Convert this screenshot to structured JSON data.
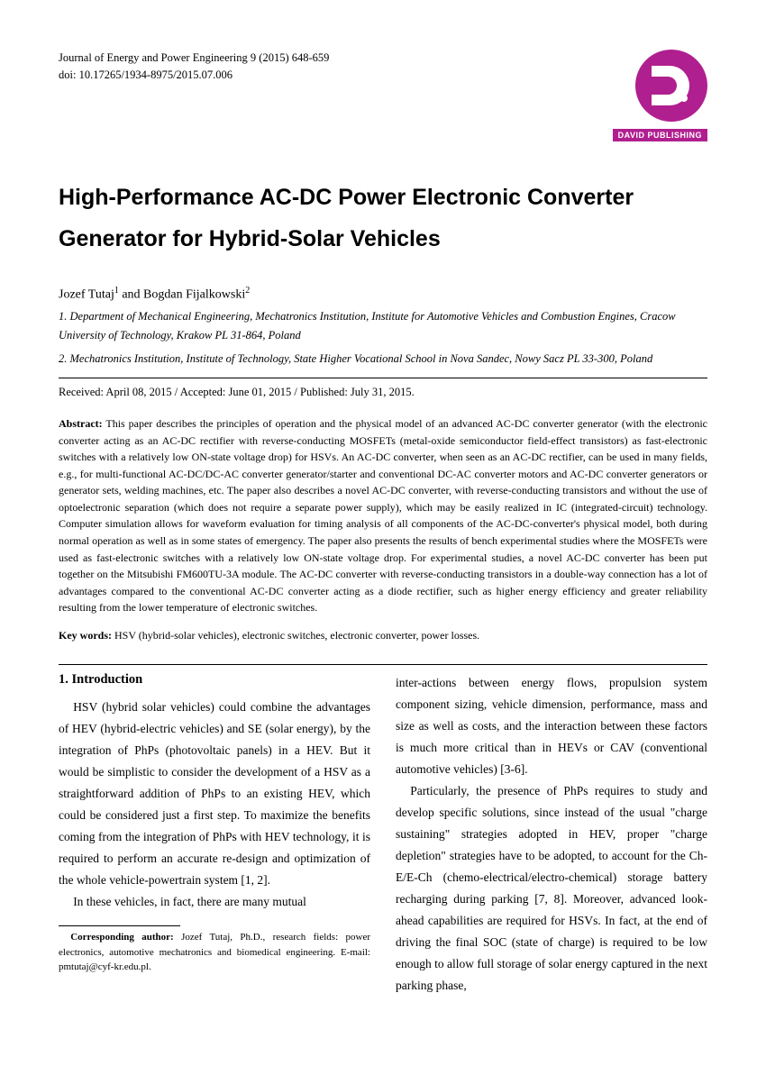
{
  "header": {
    "journal_line": "Journal of Energy and Power Engineering 9 (2015) 648-659",
    "doi_line": "doi: 10.17265/1934-8975/2015.07.006",
    "publisher_label": "DAVID PUBLISHING",
    "logo_color": "#b01f8f"
  },
  "title": "High-Performance AC-DC Power Electronic Converter Generator for Hybrid-Solar Vehicles",
  "authors_html": "Jozef Tutaj<sup>1</sup> and Bogdan Fijalkowski<sup>2</sup>",
  "affiliations": [
    "1. Department of Mechanical Engineering, Mechatronics Institution, Institute for Automotive Vehicles and Combustion Engines, Cracow University of Technology, Krakow PL 31-864, Poland",
    "2. Mechatronics Institution, Institute of Technology, State Higher Vocational School in Nova Sandec, Nowy Sacz PL 33-300, Poland"
  ],
  "dates": "Received: April 08, 2015 / Accepted: June 01, 2015 / Published: July 31, 2015.",
  "abstract_label": "Abstract:",
  "abstract_text": "This paper describes the principles of operation and the physical model of an advanced AC-DC converter generator (with the electronic converter acting as an AC-DC rectifier with reverse-conducting MOSFETs (metal-oxide semiconductor field-effect transistors) as fast-electronic switches with a relatively low ON-state voltage drop) for HSVs. An AC-DC converter, when seen as an AC-DC rectifier, can be used in many fields, e.g., for multi-functional AC-DC/DC-AC converter generator/starter and conventional DC-AC converter motors and AC-DC converter generators or generator sets, welding machines, etc. The paper also describes a novel AC-DC converter, with reverse-conducting transistors and without the use of optoelectronic separation (which does not require a separate power supply), which may be easily realized in IC (integrated-circuit) technology. Computer simulation allows for waveform evaluation for timing analysis of all components of the AC-DC-converter's physical model, both during normal operation as well as in some states of emergency. The paper also presents the results of bench experimental studies where the MOSFETs were used as fast-electronic switches with a relatively low ON-state voltage drop. For experimental studies, a novel AC-DC converter has been put together on the Mitsubishi FM600TU-3A module. The AC-DC converter with reverse-conducting transistors in a double-way connection has a lot of advantages compared to the conventional AC-DC converter acting as a diode rectifier, such as higher energy efficiency and greater reliability resulting from the lower temperature of electronic switches.",
  "keywords_label": "Key words:",
  "keywords_text": "HSV (hybrid-solar vehicles), electronic switches, electronic converter, power losses.",
  "section_heading": "1. Introduction",
  "col1": {
    "p1": "HSV (hybrid solar vehicles) could combine the advantages of HEV (hybrid-electric vehicles) and SE (solar energy), by the integration of PhPs (photovoltaic panels) in a HEV. But it would be simplistic to consider the development of a HSV as a straightforward addition of PhPs to an existing HEV, which could be considered just a first step. To maximize the benefits coming from the integration of PhPs with HEV technology, it is required to perform an accurate re-design and optimization of the whole vehicle-powertrain system [1, 2].",
    "p2": "In these vehicles, in fact, there are many mutual"
  },
  "footnote": {
    "label": "Corresponding author:",
    "text": "Jozef Tutaj, Ph.D., research fields: power electronics, automotive mechatronics and biomedical engineering. E-mail: pmtutaj@cyf-kr.edu.pl."
  },
  "col2": {
    "p1": "inter-actions between energy flows, propulsion system component sizing, vehicle dimension, performance, mass and size as well as costs, and the interaction between these factors is much more critical than in HEVs or CAV (conventional automotive vehicles) [3-6].",
    "p2": "Particularly, the presence of PhPs requires to study and develop specific solutions, since instead of the usual \"charge sustaining\" strategies adopted in HEV, proper \"charge depletion\" strategies have to be adopted, to account for the Ch-E/E-Ch (chemo-electrical/electro-chemical) storage battery recharging during parking [7, 8]. Moreover, advanced look-ahead capabilities are required for HSVs. In fact, at the end of driving the final SOC (state of charge) is required to be low enough to allow full storage of solar energy captured in the next parking phase,"
  }
}
